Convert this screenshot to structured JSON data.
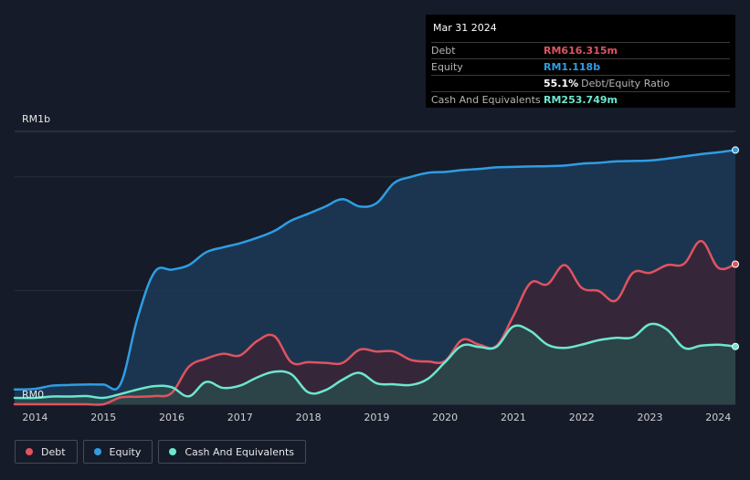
{
  "tooltip": {
    "date": "Mar 31 2024",
    "rows": [
      {
        "label": "Debt",
        "value": "RM616.315m",
        "color": "#e0535f"
      },
      {
        "label": "Equity",
        "value": "RM1.118b",
        "color": "#2f9de4"
      },
      {
        "label": "",
        "value": "55.1%",
        "suffix": "Debt/Equity Ratio",
        "color": "#ffffff"
      },
      {
        "label": "Cash And Equivalents",
        "value": "RM253.749m",
        "color": "#6de6d0"
      }
    ]
  },
  "legend": [
    {
      "label": "Debt",
      "color": "#e0535f"
    },
    {
      "label": "Equity",
      "color": "#2f9de4"
    },
    {
      "label": "Cash And Equivalents",
      "color": "#6de6d0"
    }
  ],
  "chart_data": {
    "type": "area",
    "title": "",
    "xlabel": "",
    "ylabel": "",
    "y_unit": "RM millions",
    "ylim": [
      0,
      1200
    ],
    "xlim": [
      2013.7,
      2024.25
    ],
    "y_tick_labels": [
      {
        "value": 0,
        "label": "RM0"
      },
      {
        "value": 1200,
        "label": "RM1b"
      }
    ],
    "gridlines": [
      0,
      500,
      1000,
      1200
    ],
    "x_ticks": [
      {
        "value": 2014.0,
        "label": "2014"
      },
      {
        "value": 2015.0,
        "label": "2015"
      },
      {
        "value": 2016.0,
        "label": "2016"
      },
      {
        "value": 2017.0,
        "label": "2017"
      },
      {
        "value": 2018.0,
        "label": "2018"
      },
      {
        "value": 2019.0,
        "label": "2019"
      },
      {
        "value": 2020.0,
        "label": "2020"
      },
      {
        "value": 2021.0,
        "label": "2021"
      },
      {
        "value": 2022.0,
        "label": "2022"
      },
      {
        "value": 2023.0,
        "label": "2023"
      },
      {
        "value": 2024.0,
        "label": "2024"
      }
    ],
    "series": [
      {
        "name": "Equity",
        "color": "#2f9de4",
        "fill": "#1c3a58",
        "x": [
          2013.7,
          2014.0,
          2014.25,
          2014.5,
          2014.75,
          2015.0,
          2015.25,
          2015.5,
          2015.75,
          2016.0,
          2016.25,
          2016.5,
          2016.75,
          2017.0,
          2017.25,
          2017.5,
          2017.75,
          2018.0,
          2018.25,
          2018.5,
          2018.75,
          2019.0,
          2019.25,
          2019.5,
          2019.75,
          2020.0,
          2020.25,
          2020.5,
          2020.75,
          2021.0,
          2021.25,
          2021.5,
          2021.75,
          2022.0,
          2022.25,
          2022.5,
          2022.75,
          2023.0,
          2023.25,
          2023.5,
          2023.75,
          2024.0,
          2024.25
        ],
        "values": [
          65,
          68,
          82,
          85,
          87,
          87,
          89,
          380,
          582,
          592,
          612,
          668,
          690,
          708,
          732,
          762,
          808,
          838,
          870,
          902,
          870,
          885,
          972,
          1000,
          1018,
          1022,
          1030,
          1035,
          1042,
          1044,
          1046,
          1047,
          1050,
          1058,
          1062,
          1068,
          1070,
          1072,
          1080,
          1090,
          1100,
          1108,
          1118
        ]
      },
      {
        "name": "Debt",
        "color": "#e0535f",
        "fill": "#3a2535",
        "x": [
          2013.7,
          2014.0,
          2014.25,
          2014.5,
          2014.75,
          2015.0,
          2015.25,
          2015.5,
          2015.75,
          2016.0,
          2016.25,
          2016.5,
          2016.75,
          2017.0,
          2017.25,
          2017.5,
          2017.75,
          2018.0,
          2018.25,
          2018.5,
          2018.75,
          2019.0,
          2019.25,
          2019.5,
          2019.75,
          2020.0,
          2020.25,
          2020.5,
          2020.75,
          2021.0,
          2021.25,
          2021.5,
          2021.75,
          2022.0,
          2022.25,
          2022.5,
          2022.75,
          2023.0,
          2023.25,
          2023.5,
          2023.75,
          2024.0,
          2024.25
        ],
        "values": [
          0,
          0,
          0,
          0,
          0,
          0,
          30,
          33,
          36,
          50,
          165,
          200,
          222,
          215,
          278,
          300,
          185,
          185,
          182,
          182,
          240,
          232,
          232,
          195,
          188,
          190,
          283,
          262,
          256,
          388,
          533,
          528,
          612,
          512,
          498,
          456,
          578,
          578,
          612,
          618,
          718,
          600,
          616
        ]
      },
      {
        "name": "Cash And Equivalents",
        "color": "#6de6d0",
        "fill": "#2a4a4a",
        "x": [
          2013.7,
          2014.0,
          2014.25,
          2014.5,
          2014.75,
          2015.0,
          2015.25,
          2015.5,
          2015.75,
          2016.0,
          2016.25,
          2016.5,
          2016.75,
          2017.0,
          2017.25,
          2017.5,
          2017.75,
          2018.0,
          2018.25,
          2018.5,
          2018.75,
          2019.0,
          2019.25,
          2019.5,
          2019.75,
          2020.0,
          2020.25,
          2020.5,
          2020.75,
          2021.0,
          2021.25,
          2021.5,
          2021.75,
          2022.0,
          2022.25,
          2022.5,
          2022.75,
          2023.0,
          2023.25,
          2023.5,
          2023.75,
          2024.0,
          2024.25
        ],
        "values": [
          28,
          28,
          34,
          34,
          36,
          28,
          45,
          65,
          80,
          75,
          35,
          98,
          72,
          82,
          118,
          143,
          132,
          52,
          62,
          108,
          138,
          92,
          88,
          85,
          112,
          185,
          258,
          252,
          252,
          342,
          322,
          262,
          248,
          262,
          282,
          292,
          295,
          352,
          328,
          248,
          258,
          262,
          254
        ]
      }
    ]
  }
}
